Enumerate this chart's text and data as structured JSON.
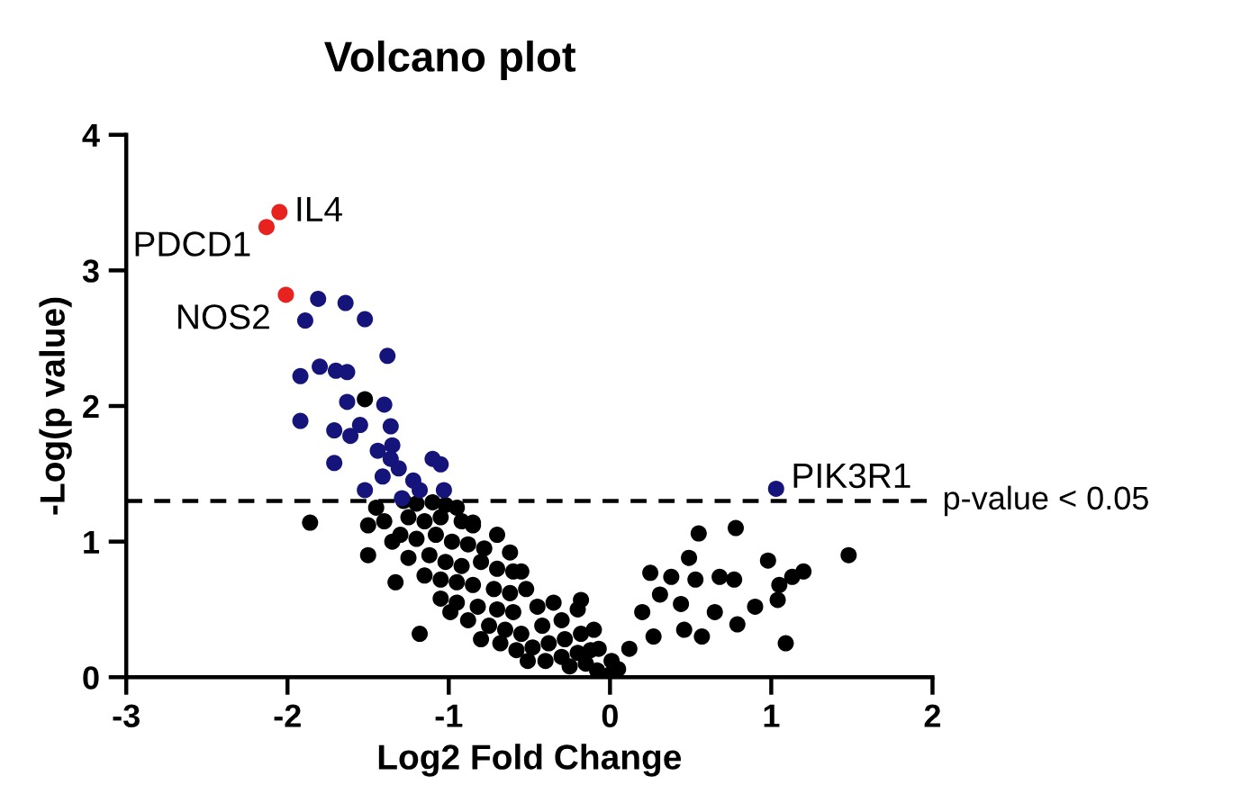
{
  "chart_data": {
    "type": "scatter",
    "title": "Volcano plot",
    "xlabel": "Log2 Fold Change",
    "ylabel": "-Log(p value)",
    "xlim": [
      -3,
      2
    ],
    "xticks": [
      -3,
      -2,
      -1,
      0,
      1,
      2
    ],
    "ylim": [
      0,
      4
    ],
    "yticks": [
      0,
      1,
      2,
      3,
      4
    ],
    "grid": false,
    "legend": false,
    "marker": "circle",
    "series": [
      {
        "color": "#000000",
        "x": [
          -1.86,
          -1.5,
          -1.5,
          -1.33,
          -1.18,
          -1.52,
          -0.85,
          -0.55,
          -0.18,
          -1.25,
          -0.99,
          -0.51,
          -1.28,
          -1.2,
          -1.1,
          -1.02,
          -0.95,
          -1.25,
          -1.15,
          -1.05,
          -0.92,
          -0.85,
          -1.3,
          -1.2,
          -1.08,
          -0.98,
          -0.88,
          -0.78,
          -1.12,
          -1.02,
          -0.92,
          -0.8,
          -0.7,
          -0.6,
          -1.15,
          -1.05,
          -0.95,
          -0.85,
          -0.72,
          -0.62,
          -0.52,
          -1.05,
          -0.95,
          -0.82,
          -0.7,
          -0.6,
          -0.45,
          -0.35,
          -0.88,
          -0.75,
          -0.65,
          -0.55,
          -0.42,
          -0.3,
          -0.2,
          -0.8,
          -0.68,
          -0.58,
          -0.48,
          -0.38,
          -0.28,
          -0.18,
          -0.4,
          -0.3,
          -0.2,
          -0.12,
          -0.25,
          -0.15,
          -0.08,
          0.0,
          0.05,
          -1.45,
          -1.4,
          -1.35,
          -0.7,
          -0.62,
          0.55,
          0.78,
          0.49,
          0.98,
          1.48,
          0.25,
          0.38,
          0.68,
          0.77,
          0.53,
          1.2,
          1.13,
          1.05,
          1.09,
          0.31,
          0.44,
          0.9,
          1.04,
          0.2,
          0.65,
          0.79,
          0.01,
          0.12,
          0.27,
          0.46,
          0.57,
          -0.1,
          -0.07
        ],
        "values": [
          1.14,
          1.12,
          0.9,
          0.7,
          0.32,
          2.05,
          1.14,
          0.78,
          0.57,
          0.88,
          0.48,
          0.12,
          1.3,
          1.28,
          1.29,
          1.27,
          1.25,
          1.18,
          1.15,
          1.18,
          1.15,
          1.12,
          1.05,
          1.02,
          1.05,
          1.0,
          0.98,
          0.95,
          0.9,
          0.85,
          0.82,
          0.85,
          0.8,
          0.78,
          0.75,
          0.72,
          0.7,
          0.68,
          0.65,
          0.62,
          0.65,
          0.58,
          0.55,
          0.52,
          0.5,
          0.48,
          0.52,
          0.55,
          0.42,
          0.38,
          0.35,
          0.32,
          0.38,
          0.42,
          0.5,
          0.28,
          0.25,
          0.2,
          0.22,
          0.25,
          0.28,
          0.32,
          0.12,
          0.15,
          0.18,
          0.2,
          0.08,
          0.1,
          0.05,
          0.02,
          0.06,
          1.25,
          1.15,
          1.0,
          1.05,
          0.92,
          1.06,
          1.1,
          0.88,
          0.86,
          0.9,
          0.77,
          0.74,
          0.74,
          0.72,
          0.72,
          0.78,
          0.74,
          0.68,
          0.25,
          0.61,
          0.54,
          0.52,
          0.57,
          0.48,
          0.48,
          0.39,
          0.12,
          0.21,
          0.3,
          0.35,
          0.3,
          0.35,
          0.21
        ]
      },
      {
        "color": "#14147a",
        "x": [
          -1.81,
          -1.64,
          -1.52,
          -1.89,
          -1.38,
          -1.8,
          -1.7,
          -1.63,
          -1.92,
          -1.63,
          -1.4,
          -1.92,
          -1.71,
          -1.55,
          -1.36,
          -1.61,
          -1.71,
          -1.35,
          -1.44,
          -1.36,
          -1.31,
          -1.52,
          -1.41,
          -1.22,
          -1.18,
          -1.1,
          -1.05,
          -1.03,
          -1.29,
          1.03
        ],
        "values": [
          2.79,
          2.76,
          2.64,
          2.63,
          2.37,
          2.29,
          2.26,
          2.25,
          2.22,
          2.03,
          2.01,
          1.89,
          1.82,
          1.86,
          1.85,
          1.78,
          1.58,
          1.71,
          1.67,
          1.61,
          1.54,
          1.38,
          1.48,
          1.45,
          1.38,
          1.61,
          1.57,
          1.38,
          1.32,
          1.39
        ]
      },
      {
        "color": "#e8221f",
        "x": [
          -2.05,
          -2.13,
          -2.01
        ],
        "values": [
          3.43,
          3.32,
          2.82
        ]
      }
    ],
    "ref_lines": [
      {
        "axis": "y",
        "value": 1.3,
        "label": "p-value < 0.05",
        "line_style": "dashed"
      }
    ],
    "annotations": [
      {
        "text": "IL4",
        "x": -2.05,
        "y": 3.43
      },
      {
        "text": "PDCD1",
        "x": -2.13,
        "y": 3.32
      },
      {
        "text": "NOS2",
        "x": -2.01,
        "y": 2.82
      },
      {
        "text": "PIK3R1",
        "x": 1.03,
        "y": 1.39
      }
    ]
  }
}
